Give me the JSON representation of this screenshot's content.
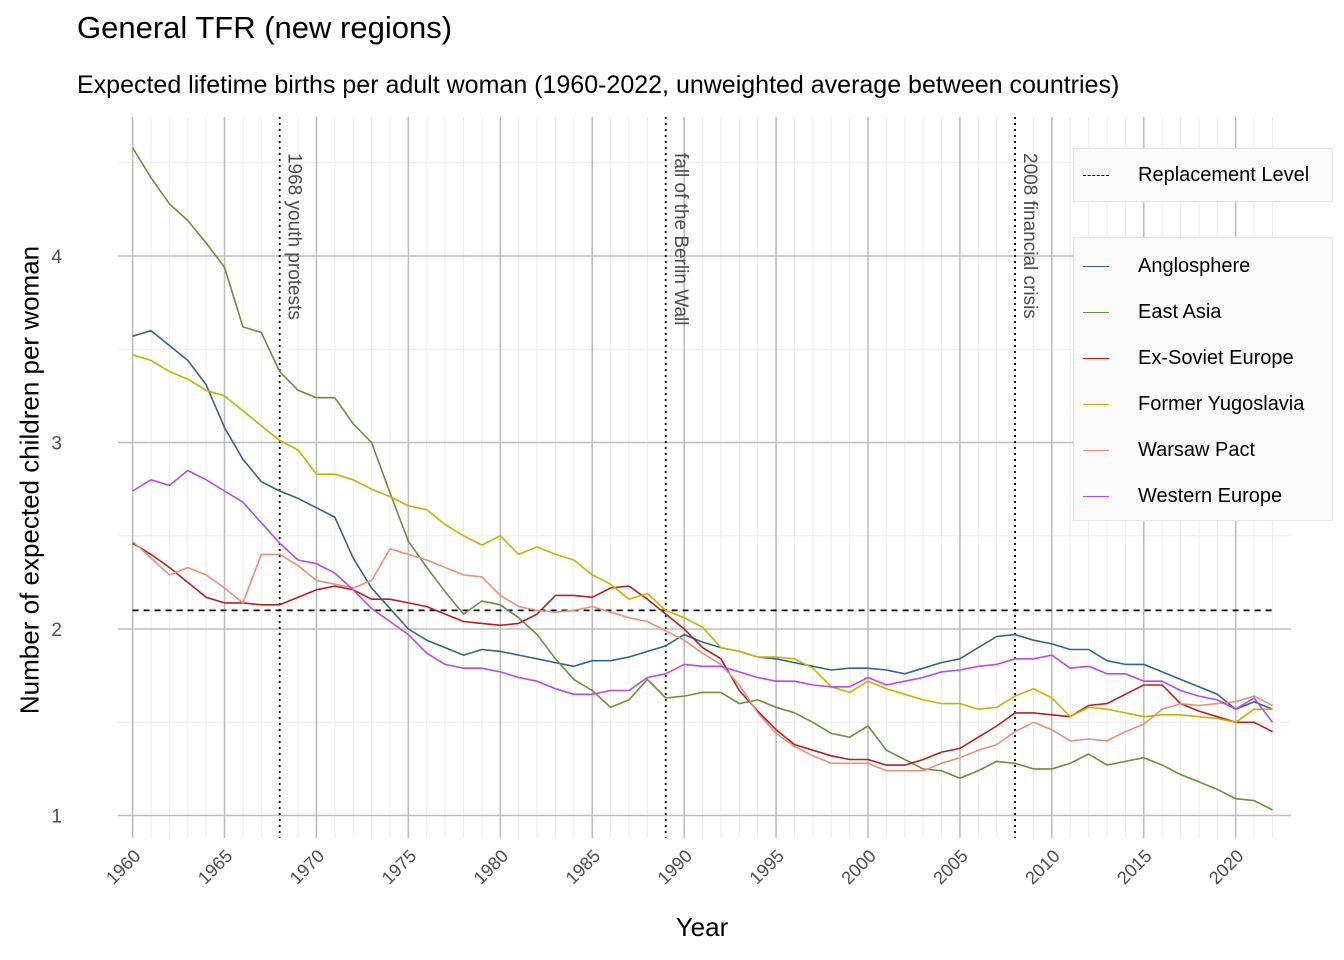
{
  "chart_data": {
    "type": "line",
    "title": "General TFR (new regions)",
    "subtitle": "Expected lifetime births per adult woman (1960-2022, unweighted average between countries)",
    "xlabel": "Year",
    "ylabel": "Number of expected children per woman",
    "xlim": [
      1960,
      2022
    ],
    "ylim": [
      1,
      4.6
    ],
    "x_ticks": [
      1960,
      1965,
      1970,
      1975,
      1980,
      1985,
      1990,
      1995,
      2000,
      2005,
      2010,
      2015,
      2020
    ],
    "y_ticks": [
      1,
      2,
      3,
      4
    ],
    "grid": true,
    "legend_position": "right",
    "reference_line": {
      "name": "Replacement Level",
      "y": 2.1,
      "style": "dashed",
      "color": "#000000"
    },
    "annotations": [
      {
        "x": 1968,
        "label": "1968 youth protests"
      },
      {
        "x": 1989,
        "label": "fall of the Berlin Wall"
      },
      {
        "x": 2008,
        "label": "2008 financial crisis"
      }
    ],
    "x": [
      1960,
      1961,
      1962,
      1963,
      1964,
      1965,
      1966,
      1967,
      1968,
      1969,
      1970,
      1971,
      1972,
      1973,
      1974,
      1975,
      1976,
      1977,
      1978,
      1979,
      1980,
      1981,
      1982,
      1983,
      1984,
      1985,
      1986,
      1987,
      1988,
      1989,
      1990,
      1991,
      1992,
      1993,
      1994,
      1995,
      1996,
      1997,
      1998,
      1999,
      2000,
      2001,
      2002,
      2003,
      2004,
      2005,
      2006,
      2007,
      2008,
      2009,
      2010,
      2011,
      2012,
      2013,
      2014,
      2015,
      2016,
      2017,
      2018,
      2019,
      2020,
      2021,
      2022
    ],
    "series": [
      {
        "name": "Anglosphere",
        "color": "#33658a",
        "values": [
          3.57,
          3.6,
          3.52,
          3.44,
          3.31,
          3.08,
          2.91,
          2.79,
          2.74,
          2.7,
          2.65,
          2.6,
          2.38,
          2.22,
          2.11,
          2.0,
          1.94,
          1.9,
          1.86,
          1.89,
          1.88,
          1.86,
          1.84,
          1.82,
          1.8,
          1.83,
          1.83,
          1.85,
          1.88,
          1.91,
          1.97,
          1.93,
          1.9,
          1.88,
          1.85,
          1.84,
          1.82,
          1.8,
          1.78,
          1.79,
          1.79,
          1.78,
          1.76,
          1.79,
          1.82,
          1.84,
          1.9,
          1.96,
          1.97,
          1.94,
          1.92,
          1.89,
          1.89,
          1.83,
          1.81,
          1.81,
          1.77,
          1.73,
          1.69,
          1.65,
          1.57,
          1.61,
          1.57
        ]
      },
      {
        "name": "East Asia",
        "color": "#6b8f3a",
        "values": [
          4.58,
          4.42,
          4.28,
          4.19,
          4.07,
          3.94,
          3.62,
          3.59,
          3.38,
          3.28,
          3.24,
          3.24,
          3.1,
          3.0,
          2.73,
          2.47,
          2.33,
          2.2,
          2.08,
          2.15,
          2.13,
          2.06,
          1.97,
          1.84,
          1.73,
          1.67,
          1.58,
          1.62,
          1.73,
          1.63,
          1.64,
          1.66,
          1.66,
          1.6,
          1.62,
          1.58,
          1.55,
          1.5,
          1.44,
          1.42,
          1.48,
          1.35,
          1.3,
          1.25,
          1.24,
          1.2,
          1.24,
          1.29,
          1.28,
          1.25,
          1.25,
          1.28,
          1.33,
          1.27,
          1.29,
          1.31,
          1.27,
          1.22,
          1.18,
          1.14,
          1.09,
          1.08,
          1.03
        ]
      },
      {
        "name": "Ex-Soviet Europe",
        "color": "#b22222",
        "values": [
          2.46,
          2.4,
          2.33,
          2.25,
          2.17,
          2.14,
          2.14,
          2.13,
          2.13,
          2.17,
          2.21,
          2.23,
          2.21,
          2.16,
          2.16,
          2.14,
          2.12,
          2.08,
          2.04,
          2.03,
          2.02,
          2.03,
          2.08,
          2.18,
          2.18,
          2.17,
          2.22,
          2.23,
          2.16,
          2.08,
          2.0,
          1.9,
          1.84,
          1.67,
          1.56,
          1.46,
          1.38,
          1.35,
          1.32,
          1.3,
          1.3,
          1.27,
          1.27,
          1.3,
          1.34,
          1.36,
          1.42,
          1.48,
          1.55,
          1.55,
          1.54,
          1.53,
          1.59,
          1.6,
          1.65,
          1.7,
          1.7,
          1.6,
          1.56,
          1.53,
          1.5,
          1.5,
          1.45
        ]
      },
      {
        "name": "Former Yugoslavia",
        "color": "#c9b300",
        "values": [
          3.47,
          3.44,
          3.38,
          3.34,
          3.28,
          3.25,
          3.17,
          3.09,
          3.01,
          2.96,
          2.83,
          2.83,
          2.8,
          2.75,
          2.71,
          2.66,
          2.64,
          2.56,
          2.5,
          2.45,
          2.5,
          2.4,
          2.44,
          2.4,
          2.37,
          2.29,
          2.24,
          2.16,
          2.19,
          2.1,
          2.06,
          2.01,
          1.9,
          1.88,
          1.85,
          1.85,
          1.84,
          1.79,
          1.69,
          1.66,
          1.72,
          1.68,
          1.65,
          1.62,
          1.6,
          1.6,
          1.57,
          1.58,
          1.64,
          1.68,
          1.63,
          1.53,
          1.58,
          1.57,
          1.55,
          1.53,
          1.54,
          1.54,
          1.53,
          1.52,
          1.5,
          1.57,
          1.57
        ]
      },
      {
        "name": "Warsaw Pact",
        "color": "#e8917a",
        "values": [
          2.47,
          2.38,
          2.29,
          2.33,
          2.29,
          2.22,
          2.14,
          2.4,
          2.4,
          2.34,
          2.26,
          2.24,
          2.22,
          2.26,
          2.43,
          2.4,
          2.37,
          2.33,
          2.29,
          2.28,
          2.18,
          2.12,
          2.1,
          2.09,
          2.1,
          2.12,
          2.09,
          2.06,
          2.04,
          1.99,
          1.94,
          1.87,
          1.81,
          1.7,
          1.55,
          1.44,
          1.37,
          1.32,
          1.28,
          1.28,
          1.28,
          1.24,
          1.24,
          1.24,
          1.28,
          1.31,
          1.35,
          1.38,
          1.45,
          1.5,
          1.46,
          1.4,
          1.41,
          1.4,
          1.45,
          1.49,
          1.57,
          1.6,
          1.59,
          1.6,
          1.61,
          1.64,
          1.59
        ]
      },
      {
        "name": "Western Europe",
        "color": "#b84ae6",
        "values": [
          2.74,
          2.8,
          2.77,
          2.85,
          2.8,
          2.74,
          2.68,
          2.57,
          2.46,
          2.37,
          2.35,
          2.3,
          2.21,
          2.11,
          2.04,
          1.97,
          1.87,
          1.81,
          1.79,
          1.79,
          1.77,
          1.74,
          1.72,
          1.68,
          1.65,
          1.65,
          1.67,
          1.67,
          1.74,
          1.76,
          1.81,
          1.8,
          1.8,
          1.77,
          1.74,
          1.72,
          1.72,
          1.7,
          1.69,
          1.69,
          1.74,
          1.7,
          1.72,
          1.74,
          1.77,
          1.78,
          1.8,
          1.81,
          1.84,
          1.84,
          1.86,
          1.79,
          1.8,
          1.76,
          1.76,
          1.72,
          1.72,
          1.67,
          1.64,
          1.62,
          1.57,
          1.63,
          1.5
        ]
      }
    ]
  }
}
